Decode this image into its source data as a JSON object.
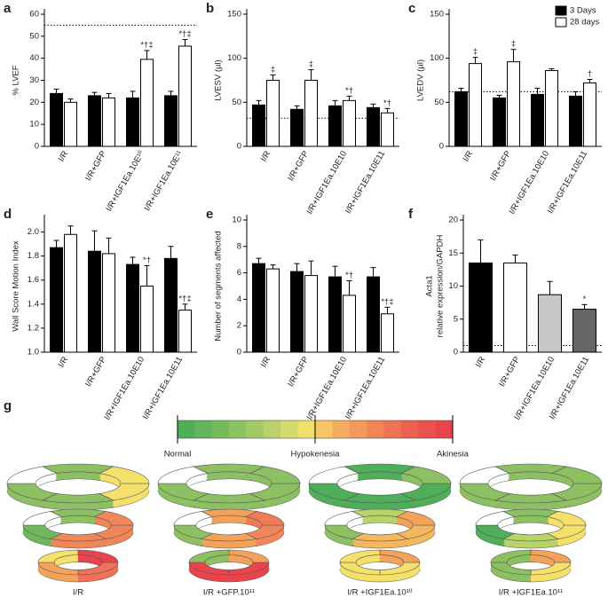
{
  "chart_data": [
    {
      "type": "bar",
      "panel": "a",
      "ylabel": "% LVEF",
      "categories": [
        "I/R",
        "I/R+GFP",
        "I/R+IGF1Ea.10E¹⁰",
        "I/R+IGF1Ea.10E¹¹"
      ],
      "series": [
        {
          "color": "#000000",
          "values": [
            24,
            23,
            22,
            23
          ],
          "errors": [
            2,
            1.5,
            3,
            2
          ],
          "annotations": [
            null,
            null,
            null,
            null
          ]
        },
        {
          "color": "#ffffff",
          "values": [
            20,
            22,
            39.5,
            45.5
          ],
          "errors": [
            1.5,
            2,
            4,
            3
          ],
          "annotations": [
            null,
            null,
            "*†‡",
            "*†‡"
          ]
        }
      ],
      "ylim": [
        0,
        60
      ],
      "yticks": [
        0,
        10,
        20,
        30,
        40,
        50,
        60
      ],
      "reference_line": 55
    },
    {
      "type": "bar",
      "panel": "b",
      "ylabel": "LVESV (µl)",
      "categories": [
        "I/R",
        "I/R+GFP",
        "I/R+IGF1Ea.10E10",
        "I/R+IGF1Ea.10E11"
      ],
      "series": [
        {
          "color": "#000000",
          "values": [
            47,
            42,
            46,
            44
          ],
          "errors": [
            5,
            4,
            6,
            4
          ],
          "annotations": [
            null,
            null,
            null,
            null
          ]
        },
        {
          "color": "#ffffff",
          "values": [
            75,
            75,
            52,
            38
          ],
          "errors": [
            6,
            12,
            5,
            5
          ],
          "annotations": [
            "‡",
            "‡",
            "*†",
            "*†"
          ]
        }
      ],
      "ylim": [
        0,
        150
      ],
      "yticks": [
        0,
        50,
        100,
        150
      ],
      "reference_line": 32
    },
    {
      "type": "bar",
      "panel": "c",
      "ylabel": "LVEDV (µl)",
      "legend": "top-right",
      "categories": [
        "I/R",
        "I/R+GFP",
        "I/R+IGF1Ea.10E10",
        "I/R+IGF1Ea.10E11"
      ],
      "series": [
        {
          "name": "3 Days",
          "color": "#000000",
          "values": [
            62,
            55,
            59,
            57
          ],
          "errors": [
            4,
            3,
            7,
            5
          ],
          "annotations": [
            null,
            null,
            null,
            null
          ]
        },
        {
          "name": "28 days",
          "color": "#ffffff",
          "values": [
            94,
            96,
            86,
            72
          ],
          "errors": [
            7,
            14,
            2,
            4
          ],
          "annotations": [
            "‡",
            "‡",
            null,
            "†"
          ]
        }
      ],
      "ylim": [
        0,
        150
      ],
      "yticks": [
        0,
        50,
        100,
        150
      ],
      "reference_line": 62
    },
    {
      "type": "bar",
      "panel": "d",
      "ylabel": "Wall Score Motion Index",
      "categories": [
        "I/R",
        "I/R+GFP",
        "I/R+IGF1Ea.10E10",
        "I/R+IGF1Ea.10E11"
      ],
      "series": [
        {
          "color": "#000000",
          "values": [
            1.87,
            1.84,
            1.73,
            1.78
          ],
          "errors": [
            0.06,
            0.17,
            0.06,
            0.1
          ],
          "annotations": [
            null,
            null,
            null,
            null
          ]
        },
        {
          "color": "#ffffff",
          "values": [
            1.98,
            1.82,
            1.55,
            1.35
          ],
          "errors": [
            0.07,
            0.13,
            0.17,
            0.05
          ],
          "annotations": [
            null,
            null,
            "*†",
            "*†‡"
          ]
        }
      ],
      "ylim": [
        1,
        2.1
      ],
      "yticks": [
        {
          "value": 1,
          "label": "1.0"
        },
        1.2,
        1.4,
        1.6,
        1.8,
        {
          "value": 2,
          "label": "2.0"
        }
      ]
    },
    {
      "type": "bar",
      "panel": "e",
      "ylabel": "Number of segments affected",
      "categories": [
        "I/R",
        "I/R+GFP",
        "I/R+IGF1Ea.10E10",
        "I/R+IGF1Ea.10E11"
      ],
      "series": [
        {
          "color": "#000000",
          "values": [
            6.7,
            6.1,
            5.7,
            5.7
          ],
          "errors": [
            0.4,
            0.6,
            0.8,
            0.7
          ],
          "annotations": [
            null,
            null,
            null,
            null
          ]
        },
        {
          "color": "#ffffff",
          "values": [
            6.3,
            5.8,
            4.3,
            2.9
          ],
          "errors": [
            0.3,
            1.1,
            1.1,
            0.5
          ],
          "annotations": [
            null,
            null,
            "*†",
            "*†‡"
          ]
        }
      ],
      "ylim": [
        0,
        10
      ],
      "yticks": [
        0,
        2,
        4,
        6,
        8,
        10
      ]
    },
    {
      "type": "bar",
      "panel": "f",
      "ylabel": [
        "Acta1",
        "relative expression/GAPDH"
      ],
      "categories": [
        "I/R",
        "I/R+GFP",
        "I/R+IGF1Ea.10E10",
        "I/R+IGF1Ea.10E11"
      ],
      "values": [
        13.5,
        13.5,
        8.7,
        6.5
      ],
      "errors": [
        3.5,
        1.2,
        2,
        0.7
      ],
      "annotations": [
        null,
        null,
        null,
        "*"
      ],
      "colors": [
        "#000000",
        "#ffffff",
        "#c8c8c8",
        "#666666"
      ],
      "ylim": [
        0,
        20
      ],
      "yticks": [
        0,
        5,
        10,
        15,
        20
      ],
      "reference_line": 1
    }
  ],
  "panel_g": {
    "panel": "g",
    "scale_labels": [
      "Normal",
      "Hypokenesia",
      "Akinesia"
    ],
    "scale_colors": [
      "#4fae5a",
      "#62b55c",
      "#75bb5e",
      "#8cc263",
      "#a3c966",
      "#bcd16a",
      "#d6d96c",
      "#efe16c",
      "#f7c466",
      "#f5ad60",
      "#f4985b",
      "#f28558",
      "#ef7355",
      "#ec6252",
      "#ea524f",
      "#e8444c"
    ],
    "columns": [
      {
        "label": "I/R",
        "rings": [
          [
            "#f4e06a",
            "#8dc063",
            "#8dc063",
            "#ffffff",
            "#8dc063",
            "#f4e06a"
          ],
          [
            "#f0875a",
            "#f0875a",
            "#6fb85c",
            "#ffffff",
            "#8dc063",
            "#f0875a"
          ],
          [
            "#f0705a",
            "#f4a25a",
            "#f4e06a",
            "#e9444c"
          ]
        ]
      },
      {
        "label": "I/R +GFP.10¹¹",
        "rings": [
          [
            "#8dc063",
            "#8dc063",
            "#8dc063",
            "#ffffff",
            "#8dc063",
            "#8dc063"
          ],
          [
            "#f0875a",
            "#f4a25a",
            "#8dc063",
            "#ffffff",
            "#f4a25a",
            "#f07a55"
          ],
          [
            "#e9444c",
            "#e9444c",
            "#8dc063",
            "#f4a25a"
          ]
        ]
      },
      {
        "label": "I/R +IGF1Ea.10¹⁰",
        "rings": [
          [
            "#4fae5a",
            "#4fae5a",
            "#4fae5a",
            "#ffffff",
            "#4fae5a",
            "#8dc063"
          ],
          [
            "#f4b75e",
            "#f4b75e",
            "#8dc063",
            "#ffffff",
            "#b8d36a",
            "#f4a25a"
          ],
          [
            "#f4e06a",
            "#f4e06a",
            "#f4e06a",
            "#f4a25a"
          ]
        ]
      },
      {
        "label": "I/R +IGF1Ea.10¹¹",
        "rings": [
          [
            "#8dc063",
            "#8dc063",
            "#8dc063",
            "#ffffff",
            "#8dc063",
            "#8dc063"
          ],
          [
            "#f4e06a",
            "#b8d36a",
            "#4fae5a",
            "#ffffff",
            "#8dc063",
            "#f4e06a"
          ],
          [
            "#f4e06a",
            "#8dc063",
            "#8dc063",
            "#f4a25a"
          ]
        ]
      }
    ]
  }
}
